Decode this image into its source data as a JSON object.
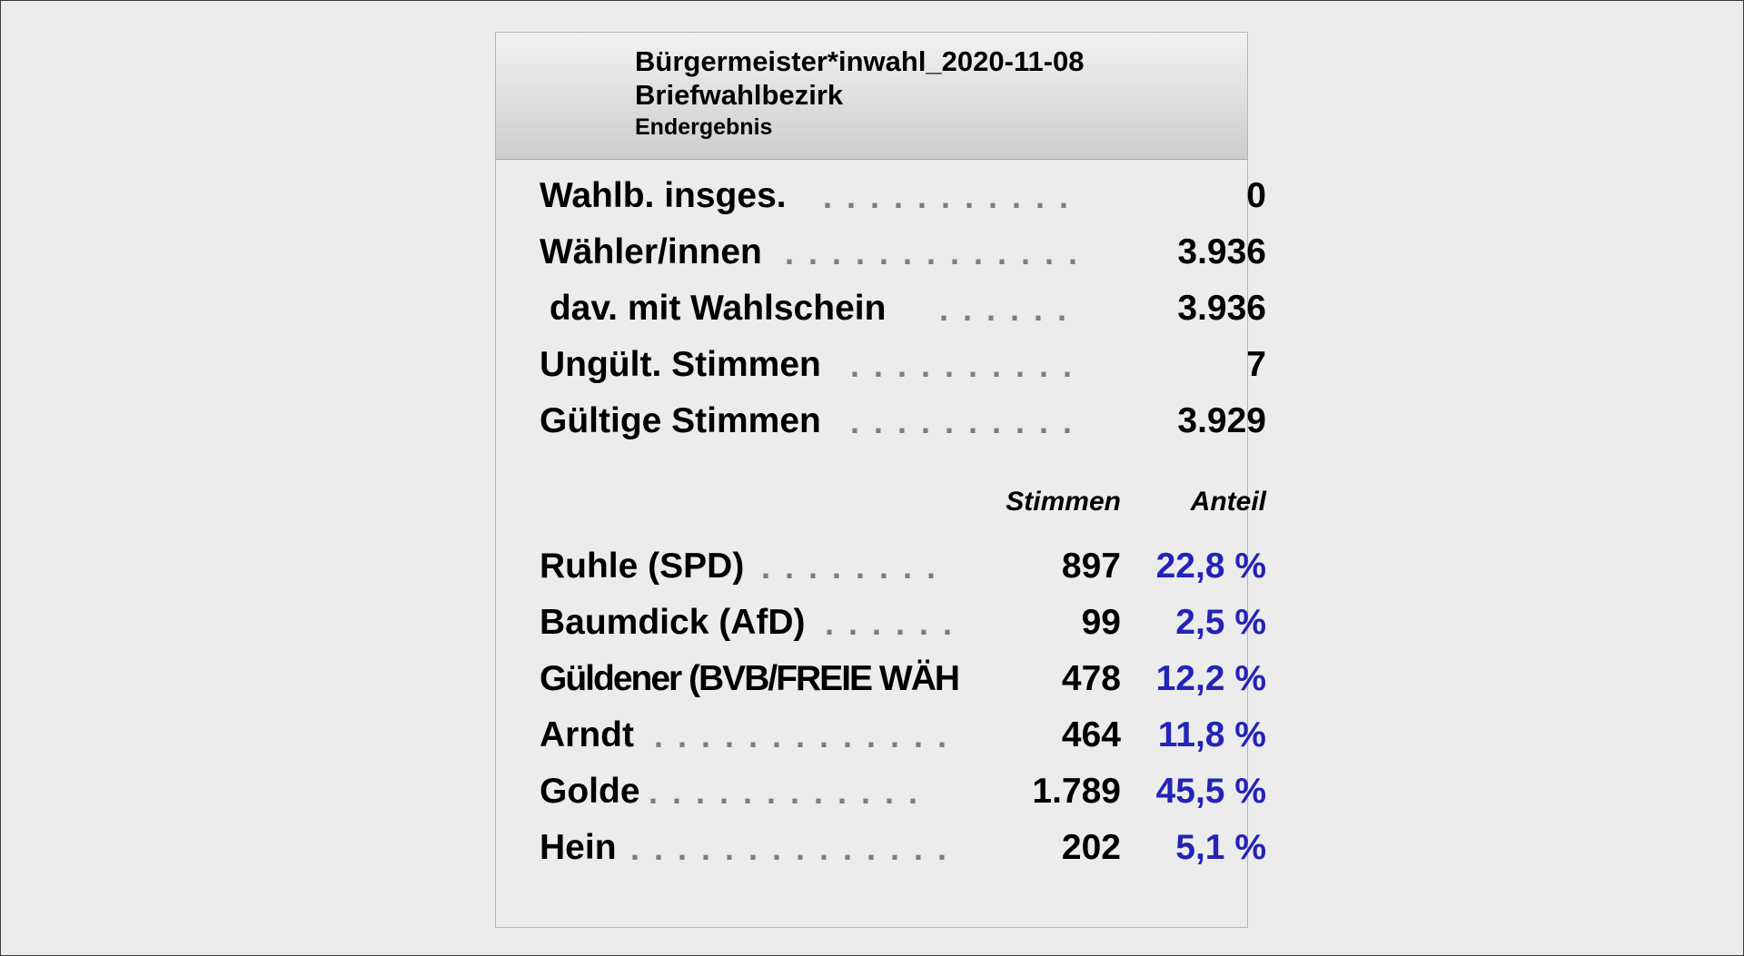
{
  "header": {
    "title": "Bürgermeister*inwahl_2020-11-08",
    "district": "Briefwahlbezirk",
    "status": "Endergebnis"
  },
  "stats": [
    {
      "label": "Wahlb. insges.",
      "dots": ". . . . . . . . . . .",
      "value": "0"
    },
    {
      "label": "Wähler/innen",
      "dots": ". . . . . . . . . . . . .",
      "value": "3.936"
    },
    {
      "label": " dav. mit Wahlschein",
      "dots": ". . . . . .",
      "value": "3.936"
    },
    {
      "label": "Ungült. Stimmen",
      "dots": ". . . . . . . . . .",
      "value": "7"
    },
    {
      "label": "Gültige Stimmen",
      "dots": ". . . . . . . . . .",
      "value": "3.929"
    }
  ],
  "columns": {
    "votes": "Stimmen",
    "share": "Anteil"
  },
  "candidates": [
    {
      "label": "Ruhle (SPD)",
      "dots": ". . . . . . . .",
      "votes": "897",
      "share": "22,8 %"
    },
    {
      "label": "Baumdick (AfD)",
      "dots": ". . . . . .",
      "votes": "99",
      "share": "2,5 %"
    },
    {
      "label": "Güldener (BVB/FREIE WÄH",
      "dots": "",
      "votes": "478",
      "share": "12,2 %"
    },
    {
      "label": "Arndt",
      "dots": ". . . . . . . . . . . . .",
      "votes": "464",
      "share": "11,8 %"
    },
    {
      "label": "Golde",
      "dots": ". . . . . . . . . . . .",
      "votes": "1.789",
      "share": "45,5 %"
    },
    {
      "label": "Hein",
      "dots": ". . . . . . . . . . . . . .",
      "votes": "202",
      "share": "5,1 %"
    }
  ],
  "colors": {
    "share_text": "#2323b8",
    "leader_dots": "#7d7d7d"
  }
}
